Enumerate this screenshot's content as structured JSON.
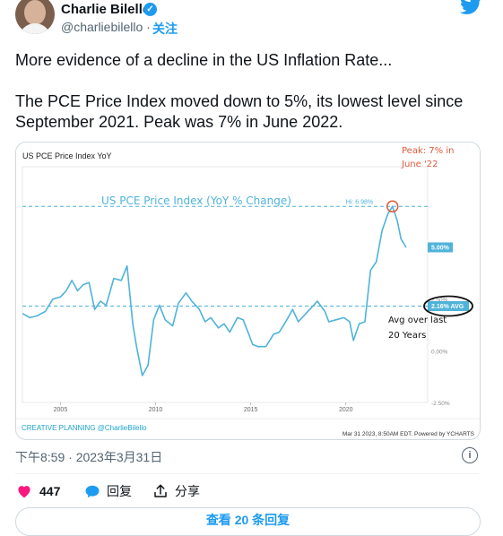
{
  "author": {
    "name": "Charlie Bilello",
    "handle": "@charliebilello",
    "follow_label": "关注"
  },
  "tweet": {
    "line1": "More evidence of a decline in the US Inflation Rate...",
    "line2": "The PCE Price Index moved down to 5%, its lowest level since September 2021. Peak was 7% in June 2022."
  },
  "chart_data": {
    "type": "line",
    "title": "US PCE Price Index YoY",
    "subtitle": "US PCE Price Index (YoY % Change)",
    "series": [
      {
        "values": [
          [
            2003.0,
            1.8
          ],
          [
            2003.4,
            1.6
          ],
          [
            2003.8,
            1.7
          ],
          [
            2004.2,
            1.9
          ],
          [
            2004.6,
            2.5
          ],
          [
            2005.0,
            2.6
          ],
          [
            2005.3,
            2.9
          ],
          [
            2005.6,
            3.4
          ],
          [
            2005.9,
            2.9
          ],
          [
            2006.2,
            3.2
          ],
          [
            2006.5,
            3.3
          ],
          [
            2006.8,
            2.0
          ],
          [
            2007.1,
            2.4
          ],
          [
            2007.4,
            2.2
          ],
          [
            2007.8,
            3.5
          ],
          [
            2008.2,
            3.4
          ],
          [
            2008.5,
            4.1
          ],
          [
            2008.8,
            1.3
          ],
          [
            2009.0,
            0.2
          ],
          [
            2009.3,
            -1.2
          ],
          [
            2009.6,
            -0.7
          ],
          [
            2009.9,
            1.5
          ],
          [
            2010.2,
            2.2
          ],
          [
            2010.5,
            1.5
          ],
          [
            2010.9,
            1.2
          ],
          [
            2011.2,
            2.3
          ],
          [
            2011.6,
            2.8
          ],
          [
            2011.9,
            2.4
          ],
          [
            2012.3,
            2.0
          ],
          [
            2012.6,
            1.4
          ],
          [
            2012.9,
            1.6
          ],
          [
            2013.3,
            1.1
          ],
          [
            2013.6,
            1.3
          ],
          [
            2013.9,
            0.9
          ],
          [
            2014.3,
            1.6
          ],
          [
            2014.6,
            1.5
          ],
          [
            2014.9,
            0.8
          ],
          [
            2015.1,
            0.3
          ],
          [
            2015.4,
            0.2
          ],
          [
            2015.8,
            0.2
          ],
          [
            2016.2,
            0.8
          ],
          [
            2016.5,
            0.9
          ],
          [
            2016.9,
            1.5
          ],
          [
            2017.2,
            2.0
          ],
          [
            2017.5,
            1.4
          ],
          [
            2017.9,
            1.8
          ],
          [
            2018.2,
            2.1
          ],
          [
            2018.5,
            2.4
          ],
          [
            2018.9,
            1.9
          ],
          [
            2019.1,
            1.4
          ],
          [
            2019.5,
            1.5
          ],
          [
            2019.9,
            1.6
          ],
          [
            2020.2,
            1.4
          ],
          [
            2020.4,
            0.5
          ],
          [
            2020.7,
            1.3
          ],
          [
            2021.0,
            1.4
          ],
          [
            2021.3,
            3.9
          ],
          [
            2021.6,
            4.3
          ],
          [
            2021.9,
            5.8
          ],
          [
            2022.2,
            6.6
          ],
          [
            2022.45,
            6.98
          ],
          [
            2022.7,
            6.3
          ],
          [
            2022.9,
            5.4
          ],
          [
            2023.17,
            5.0
          ]
        ]
      }
    ],
    "x_ticks": [
      "2005",
      "2010",
      "2015",
      "2020"
    ],
    "y_ticks": [
      "2.50%",
      "0.00%",
      "-2.50%"
    ],
    "xlim": [
      2003.0,
      2024.3
    ],
    "ylim": [
      -2.5,
      8.9
    ],
    "hi_label": "Hi: 6.98%",
    "last_label": "5.00%",
    "avg_value": 2.16,
    "avg_label": "2.16% AVG",
    "annotations": {
      "peak": "Peak: 7% in June '22",
      "avg": "Avg over last 20 Years"
    },
    "footer_left": "CREATIVE PLANNING @CharlieBilello",
    "footer_right": "Mar 31 2023, 8:50AM EDT. Powered by YCHARTS",
    "colors": {
      "line": "#4fb3d9",
      "annotation": "#e05a3a",
      "brand": "#1aa3c8"
    }
  },
  "meta": {
    "timestamp": "下午8:59 · 2023年3月31日"
  },
  "actions": {
    "likes": "447",
    "reply_label": "回复",
    "share_label": "分享"
  },
  "more_replies": "查看 20 条回复"
}
